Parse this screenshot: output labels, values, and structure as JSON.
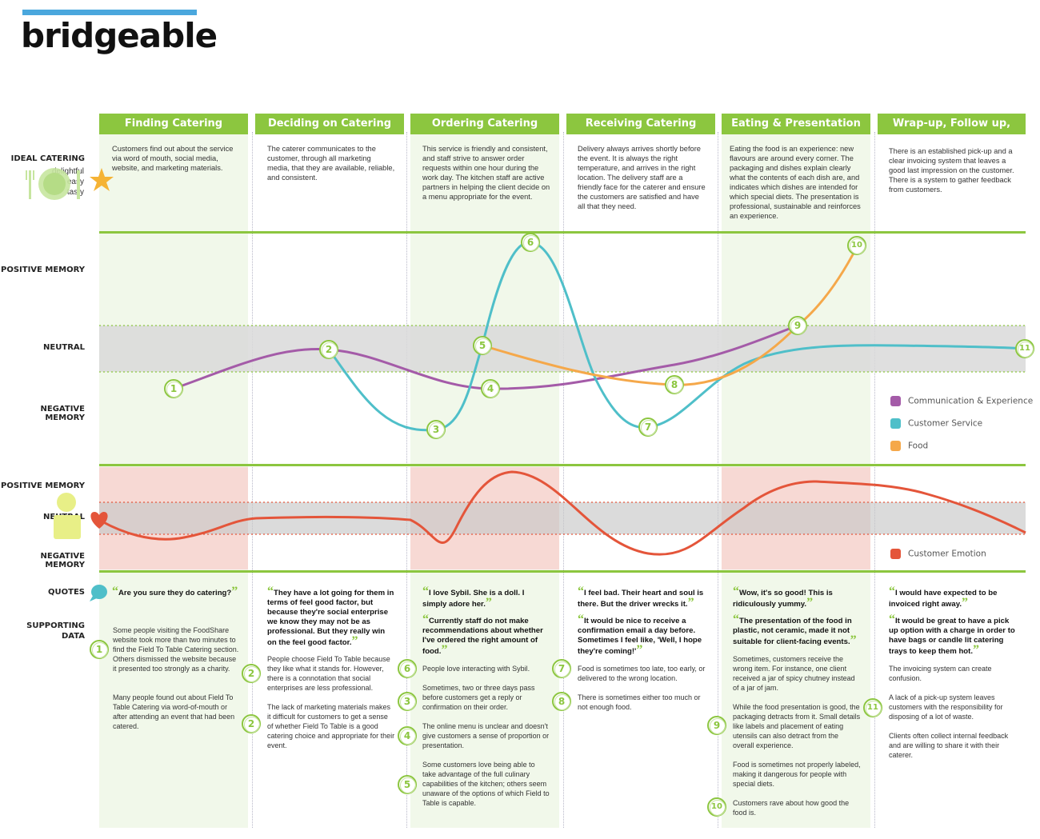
{
  "logo": "bridgeable",
  "colors": {
    "green": "#8cc63f",
    "communication": "#a45ba8",
    "service": "#4fbfc9",
    "food": "#f5a84a",
    "emotion": "#e4553a",
    "logo_bar": "#4aa7dd"
  },
  "row_labels": {
    "ideal": "IDEAL CATERING",
    "positive_memory": "POSITIVE MEMORY",
    "neutral": "NEUTRAL",
    "negative_memory": "NEGATIVE MEMORY",
    "positive_memory_2": "POSITIVE MEMORY",
    "neutral_2": "NEUTRAL",
    "negative_memory_2": "NEGATIVE MEMORY",
    "quotes": "QUOTES",
    "supporting_data": "SUPPORTING DATA"
  },
  "ideal_words": [
    "delightful",
    "easy",
    "tasty"
  ],
  "stages": [
    {
      "title": "Finding Catering",
      "description": "Customers find out about the service via word of mouth, social media, website, and marketing materials.",
      "quotes": [
        "Are you sure they do catering?"
      ],
      "supporting": [
        {
          "badge": "1",
          "text": "Some people visiting the FoodShare website took more than two minutes to find the Field To Table Catering section. Others dismissed the website because it presented too strongly as a charity."
        },
        {
          "badge": "",
          "text": "Many people found out about Field To Table Catering via word-of-mouth or after attending an event that had been catered."
        }
      ]
    },
    {
      "title": "Deciding on Catering",
      "description": "The caterer communicates to the customer, through all marketing media, that they are available, reliable, and consistent.",
      "quotes": [
        "They have a lot going for them in terms of feel good factor, but because they're social enterprise we know they may not be as professional. But they really win on the feel good factor."
      ],
      "supporting": [
        {
          "badge": "2",
          "text": "People choose Field To Table because they like what it stands for. However, there is a connotation that social enterprises are less professional."
        },
        {
          "badge": "2",
          "text": "The lack of marketing materials makes it difficult for customers to get a sense of whether Field To Table is a good catering choice and appropriate for their event."
        }
      ]
    },
    {
      "title": "Ordering Catering",
      "description": "This service is friendly and consistent, and staff strive to answer order requests within one hour during the work day. The kitchen staff are active partners in helping the client decide on a menu appropriate for the event.",
      "quotes": [
        "I love Sybil. She is a doll. I simply adore her.",
        "Currently staff do not make recommendations about whether I've ordered the right amount of food."
      ],
      "supporting": [
        {
          "badge": "6",
          "text": "People love interacting with Sybil."
        },
        {
          "badge": "3",
          "text": "Sometimes, two or three days pass before customers get a reply or confirmation on their order."
        },
        {
          "badge": "4",
          "text": "The online menu is unclear and doesn't give customers a sense of proportion or presentation."
        },
        {
          "badge": "5",
          "text": "Some customers love being able to take advantage of the full culinary capabilities of the kitchen; others seem unaware of the options of which Field to Table is capable."
        }
      ]
    },
    {
      "title": "Receiving Catering",
      "description": "Delivery always arrives shortly before the event. It is always the right temperature, and arrives in the right location. The delivery staff are a friendly face for the caterer and ensure the customers are satisfied and have all that they need.",
      "quotes": [
        "I feel bad. Their heart and soul is there. But the driver wrecks it.",
        "It would be nice to receive a confirmation email a day before. Sometimes I feel like, 'Well, I hope they're coming!'"
      ],
      "supporting": [
        {
          "badge": "7",
          "text": "Food is sometimes too late, too early, or delivered to the wrong location."
        },
        {
          "badge": "8",
          "text": "There is sometimes either too much or not enough food."
        }
      ]
    },
    {
      "title": "Eating & Presentation",
      "description": "Eating the food is an experience: new flavours are around every corner. The packaging and dishes explain clearly what the contents of each dish are, and indicates which dishes are intended for which special diets. The presentation is professional, sustainable and reinforces an experience.",
      "quotes": [
        "Wow, it's so good! This is ridiculously yummy.",
        "The presentation of the food in plastic, not ceramic, made it not suitable for client-facing events."
      ],
      "supporting": [
        {
          "badge": "",
          "text": "Sometimes, customers receive the wrong item. For instance, one client received a jar of spicy chutney instead of a jar of jam."
        },
        {
          "badge": "9",
          "text": "While the food presentation is good, the packaging detracts from it. Small details like labels and placement of eating utensils can also detract from the overall experience."
        },
        {
          "badge": "",
          "text": "Food is sometimes not properly labeled, making it dangerous for people with special diets."
        },
        {
          "badge": "10",
          "text": "Customers rave about how good the food is."
        }
      ]
    },
    {
      "title": "Wrap-up, Follow up, Payment",
      "description": "There is an established pick-up and a clear invoicing system that leaves a good last impression on the customer. There is a system to gather feedback from customers.",
      "quotes": [
        "I would have expected to be invoiced right away.",
        "It would be great to have a pick up option with a charge in order to have bags or candle lit catering trays to keep them hot."
      ],
      "supporting": [
        {
          "badge": "",
          "text": "The invoicing system can create confusion."
        },
        {
          "badge": "11",
          "text": "A lack of a pick-up system leaves customers with the responsibility for disposing of a lot of waste."
        },
        {
          "badge": "",
          "text": "Clients often collect internal feedback and are willing to share it with their caterer."
        }
      ]
    }
  ],
  "legend": [
    "Communication & Experience",
    "Customer Service",
    "Food"
  ],
  "emotion_legend": "Customer Emotion",
  "markers": [
    "1",
    "2",
    "3",
    "4",
    "5",
    "6",
    "7",
    "8",
    "9",
    "10",
    "11"
  ]
}
